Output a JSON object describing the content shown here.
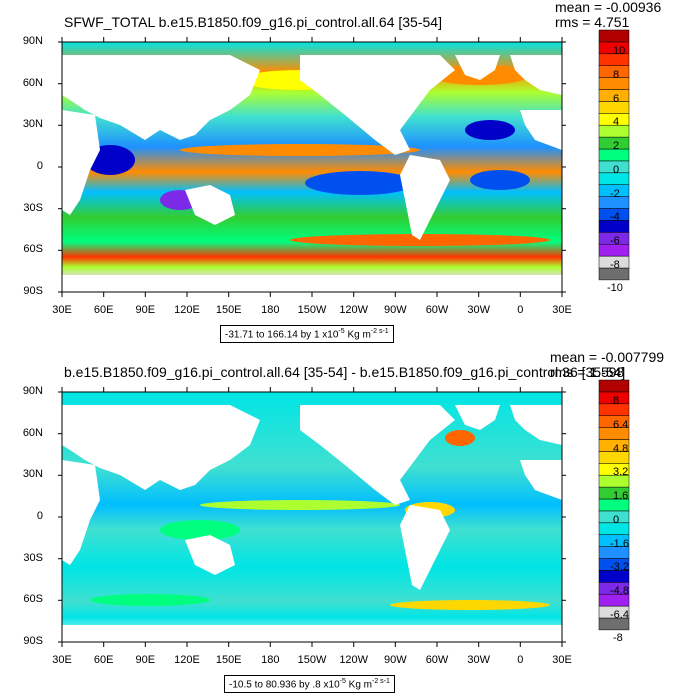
{
  "colorbar_colors": [
    "#6e6e6e",
    "#dcdcdc",
    "#a020f0",
    "#7d2ae8",
    "#0000c8",
    "#0050f0",
    "#1e90ff",
    "#00bfff",
    "#00e5e5",
    "#40e0d0",
    "#00ff7f",
    "#32cd32",
    "#adff2f",
    "#ffff00",
    "#ffd700",
    "#ffb000",
    "#ff8c00",
    "#ff6600",
    "#ff3300",
    "#ee0000",
    "#b00000"
  ],
  "lon_ticks": [
    "30E",
    "60E",
    "90E",
    "120E",
    "150E",
    "180",
    "150W",
    "120W",
    "90W",
    "60W",
    "30W",
    "0",
    "30E"
  ],
  "lat_ticks": [
    "90N",
    "60N",
    "30N",
    "0",
    "30S",
    "60S",
    "90S"
  ],
  "panels": [
    {
      "title": "SFWF_TOTAL b.e15.B1850.f09_g16.pi_control.all.64 [35-54]",
      "mean": "mean = -0.00936",
      "rms": "rms = 4.751",
      "range_text": "-31.71 to 166.14 by 1 x10",
      "range_exp": "-5",
      "range_unit": "Kg m",
      "range_unit_exp": "-2 s-1",
      "colorbar_labels": [
        "10",
        "8",
        "6",
        "4",
        "2",
        "0",
        "-2",
        "-4",
        "-6",
        "-8",
        "-10"
      ]
    },
    {
      "title": "b.e15.B1850.f09_g16.pi_control.all.64 [35-54] - b.e15.B1850.f09_g16.pi_control.36 [35-54]",
      "mean": "mean = -0.007799",
      "rms": "rms = 1.598",
      "range_text": "-10.5 to 80.936 by .8 x10",
      "range_exp": "-5",
      "range_unit": "Kg m",
      "range_unit_exp": "-2 s-1",
      "colorbar_labels": [
        "8",
        "6.4",
        "4.8",
        "3.2",
        "1.6",
        "0",
        "-1.6",
        "-3.2",
        "-4.8",
        "-6.4",
        "-8"
      ]
    }
  ]
}
